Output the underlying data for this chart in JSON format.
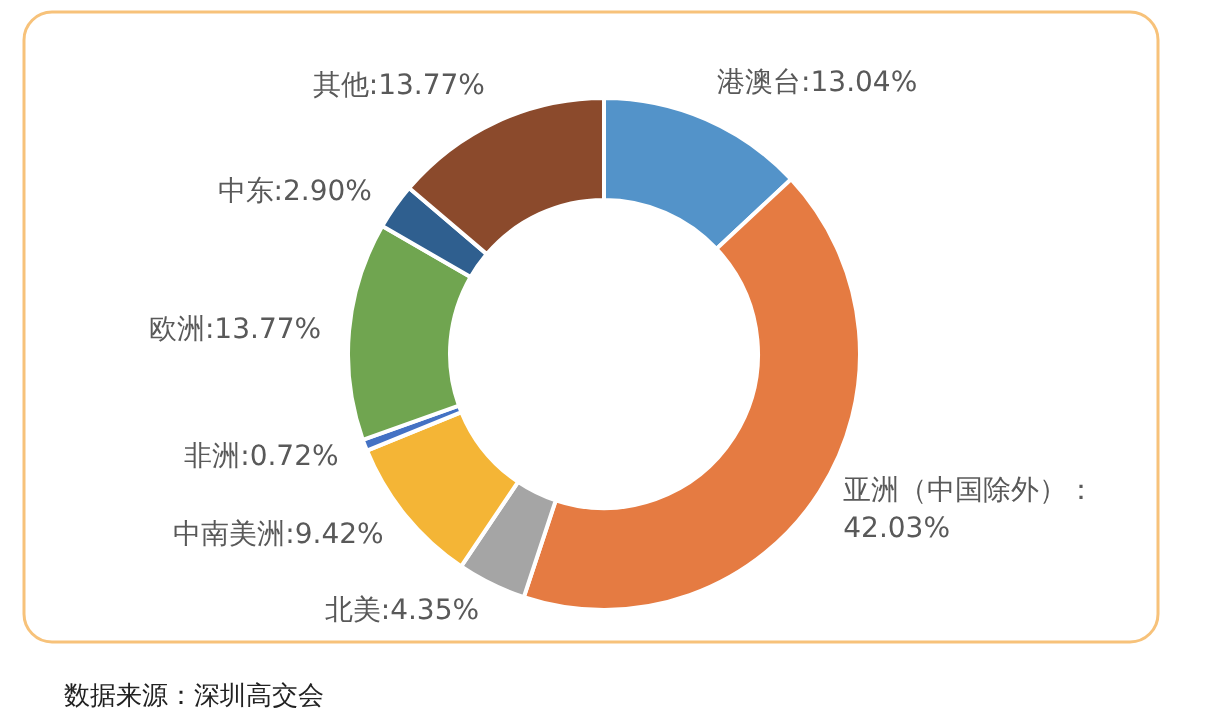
{
  "chart_data": {
    "type": "donut",
    "categories": [
      "港澳台",
      "亚洲（中国除外）",
      "北美",
      "中南美洲",
      "非洲",
      "欧洲",
      "中东",
      "其他"
    ],
    "values": [
      13.04,
      42.03,
      4.35,
      9.42,
      0.72,
      13.77,
      2.9,
      13.77
    ],
    "colors": [
      "#5393c9",
      "#e57b42",
      "#a5a5a5",
      "#f4b536",
      "#4472c4",
      "#70a550",
      "#2f5f8f",
      "#8b4a2c"
    ],
    "value_labels": [
      ":13.04%",
      "：\n42.03%",
      ":4.35%",
      ":9.42%",
      ":0.72%",
      ":13.77%",
      ":2.90%",
      ":13.77%"
    ],
    "annotations": [
      "数据来源：深圳高交会"
    ]
  }
}
